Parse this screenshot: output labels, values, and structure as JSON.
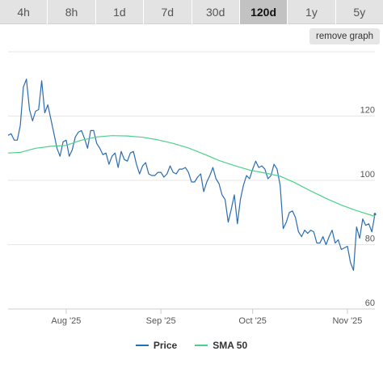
{
  "tabs": [
    {
      "label": "4h",
      "active": false
    },
    {
      "label": "8h",
      "active": false
    },
    {
      "label": "1d",
      "active": false
    },
    {
      "label": "7d",
      "active": false
    },
    {
      "label": "30d",
      "active": false
    },
    {
      "label": "120d",
      "active": true
    },
    {
      "label": "1y",
      "active": false
    },
    {
      "label": "5y",
      "active": false
    }
  ],
  "remove_graph_label": "remove graph",
  "colors": {
    "price": "#2b6cb0",
    "sma": "#4cd18a",
    "grid": "#e6e6e6",
    "axis": "#cccccc"
  },
  "chart_data": {
    "type": "line",
    "title": "",
    "xlabel": "",
    "ylabel": "",
    "ylim": [
      60,
      140
    ],
    "y_ticks": [
      "60",
      "80",
      "100",
      "120"
    ],
    "x_ticks": [
      {
        "label": "Aug '25",
        "date": "2025-08-01"
      },
      {
        "label": "Sep '25",
        "date": "2025-09-01"
      },
      {
        "label": "Oct '25",
        "date": "2025-10-01"
      },
      {
        "label": "Nov '25",
        "date": "2025-11-01"
      }
    ],
    "x_range": [
      "2025-07-13",
      "2025-11-10"
    ],
    "grid": true,
    "legend_position": "bottom",
    "series": [
      {
        "name": "Price",
        "color": "#2b6cb0",
        "points": [
          [
            "2025-07-13",
            114
          ],
          [
            "2025-07-14",
            114.5
          ],
          [
            "2025-07-15",
            112.5
          ],
          [
            "2025-07-16",
            112.5
          ],
          [
            "2025-07-17",
            117
          ],
          [
            "2025-07-18",
            129
          ],
          [
            "2025-07-19",
            131.5
          ],
          [
            "2025-07-20",
            122
          ],
          [
            "2025-07-21",
            118.5
          ],
          [
            "2025-07-22",
            121.5
          ],
          [
            "2025-07-23",
            122
          ],
          [
            "2025-07-24",
            131
          ],
          [
            "2025-07-25",
            121
          ],
          [
            "2025-07-26",
            123.5
          ],
          [
            "2025-07-27",
            119
          ],
          [
            "2025-07-28",
            114.5
          ],
          [
            "2025-07-29",
            110
          ],
          [
            "2025-07-30",
            107.5
          ],
          [
            "2025-07-31",
            112
          ],
          [
            "2025-08-01",
            112.5
          ],
          [
            "2025-08-02",
            107.5
          ],
          [
            "2025-08-03",
            109.5
          ],
          [
            "2025-08-04",
            113.5
          ],
          [
            "2025-08-05",
            115
          ],
          [
            "2025-08-06",
            115.5
          ],
          [
            "2025-08-07",
            113
          ],
          [
            "2025-08-08",
            110
          ],
          [
            "2025-08-09",
            115.5
          ],
          [
            "2025-08-10",
            115.5
          ],
          [
            "2025-08-11",
            111.5
          ],
          [
            "2025-08-12",
            110
          ],
          [
            "2025-08-13",
            108
          ],
          [
            "2025-08-14",
            108.5
          ],
          [
            "2025-08-15",
            105
          ],
          [
            "2025-08-16",
            107.5
          ],
          [
            "2025-08-17",
            108.5
          ],
          [
            "2025-08-18",
            104
          ],
          [
            "2025-08-19",
            109
          ],
          [
            "2025-08-20",
            106.5
          ],
          [
            "2025-08-21",
            106
          ],
          [
            "2025-08-22",
            108.5
          ],
          [
            "2025-08-23",
            109
          ],
          [
            "2025-08-24",
            105
          ],
          [
            "2025-08-25",
            102
          ],
          [
            "2025-08-26",
            104.5
          ],
          [
            "2025-08-27",
            105.5
          ],
          [
            "2025-08-28",
            102
          ],
          [
            "2025-08-29",
            101.5
          ],
          [
            "2025-08-30",
            101.5
          ],
          [
            "2025-08-31",
            102.5
          ],
          [
            "2025-09-01",
            102.5
          ],
          [
            "2025-09-02",
            101
          ],
          [
            "2025-09-03",
            102
          ],
          [
            "2025-09-04",
            104.5
          ],
          [
            "2025-09-05",
            102.5
          ],
          [
            "2025-09-06",
            102
          ],
          [
            "2025-09-07",
            103.5
          ],
          [
            "2025-09-08",
            103.5
          ],
          [
            "2025-09-09",
            104
          ],
          [
            "2025-09-10",
            102.5
          ],
          [
            "2025-09-11",
            99.5
          ],
          [
            "2025-09-12",
            99.5
          ],
          [
            "2025-09-13",
            101
          ],
          [
            "2025-09-14",
            102
          ],
          [
            "2025-09-15",
            96.5
          ],
          [
            "2025-09-16",
            99.5
          ],
          [
            "2025-09-17",
            101.5
          ],
          [
            "2025-09-18",
            104
          ],
          [
            "2025-09-19",
            100.5
          ],
          [
            "2025-09-20",
            99
          ],
          [
            "2025-09-21",
            95.5
          ],
          [
            "2025-09-22",
            94
          ],
          [
            "2025-09-23",
            87
          ],
          [
            "2025-09-24",
            91
          ],
          [
            "2025-09-25",
            95.5
          ],
          [
            "2025-09-26",
            86.5
          ],
          [
            "2025-09-27",
            94
          ],
          [
            "2025-09-28",
            98.5
          ],
          [
            "2025-09-29",
            101.5
          ],
          [
            "2025-09-30",
            100.5
          ],
          [
            "2025-10-01",
            103.5
          ],
          [
            "2025-10-02",
            106
          ],
          [
            "2025-10-03",
            104
          ],
          [
            "2025-10-04",
            104.5
          ],
          [
            "2025-10-05",
            103.5
          ],
          [
            "2025-10-06",
            100.5
          ],
          [
            "2025-10-07",
            101.5
          ],
          [
            "2025-10-08",
            105
          ],
          [
            "2025-10-09",
            103.5
          ],
          [
            "2025-10-10",
            98.5
          ],
          [
            "2025-10-11",
            85
          ],
          [
            "2025-10-12",
            87
          ],
          [
            "2025-10-13",
            90
          ],
          [
            "2025-10-14",
            90.5
          ],
          [
            "2025-10-15",
            88.5
          ],
          [
            "2025-10-16",
            84
          ],
          [
            "2025-10-17",
            82.5
          ],
          [
            "2025-10-18",
            84.5
          ],
          [
            "2025-10-19",
            83.5
          ],
          [
            "2025-10-20",
            84.5
          ],
          [
            "2025-10-21",
            84
          ],
          [
            "2025-10-22",
            80.5
          ],
          [
            "2025-10-23",
            80.5
          ],
          [
            "2025-10-24",
            82.5
          ],
          [
            "2025-10-25",
            80
          ],
          [
            "2025-10-26",
            82.5
          ],
          [
            "2025-10-27",
            84.5
          ],
          [
            "2025-10-28",
            80.5
          ],
          [
            "2025-10-29",
            81.5
          ],
          [
            "2025-10-30",
            78.5
          ],
          [
            "2025-10-31",
            79
          ],
          [
            "2025-11-01",
            79.5
          ],
          [
            "2025-11-02",
            74.5
          ],
          [
            "2025-11-03",
            72
          ],
          [
            "2025-11-04",
            85.5
          ],
          [
            "2025-11-05",
            82
          ],
          [
            "2025-11-06",
            88
          ],
          [
            "2025-11-07",
            86
          ],
          [
            "2025-11-08",
            86.5
          ],
          [
            "2025-11-09",
            84
          ],
          [
            "2025-11-10",
            89.5
          ]
        ]
      },
      {
        "name": "SMA 50",
        "color": "#4cd18a",
        "points": [
          [
            "2025-07-13",
            108.5
          ],
          [
            "2025-07-17",
            108.7
          ],
          [
            "2025-07-22",
            110
          ],
          [
            "2025-07-27",
            110.6
          ],
          [
            "2025-08-01",
            110.9
          ],
          [
            "2025-08-06",
            112.5
          ],
          [
            "2025-08-11",
            113.5
          ],
          [
            "2025-08-16",
            113.9
          ],
          [
            "2025-08-21",
            113.8
          ],
          [
            "2025-08-26",
            113.4
          ],
          [
            "2025-08-31",
            112.6
          ],
          [
            "2025-09-05",
            111.5
          ],
          [
            "2025-09-10",
            110.1
          ],
          [
            "2025-09-15",
            108.2
          ],
          [
            "2025-09-20",
            106.2
          ],
          [
            "2025-09-25",
            104.6
          ],
          [
            "2025-09-30",
            103.2
          ],
          [
            "2025-10-05",
            102.3
          ],
          [
            "2025-10-10",
            101.3
          ],
          [
            "2025-10-15",
            99.2
          ],
          [
            "2025-10-20",
            96.7
          ],
          [
            "2025-10-25",
            94.4
          ],
          [
            "2025-10-30",
            92.3
          ],
          [
            "2025-11-04",
            90.6
          ],
          [
            "2025-11-10",
            88.8
          ]
        ]
      }
    ]
  }
}
